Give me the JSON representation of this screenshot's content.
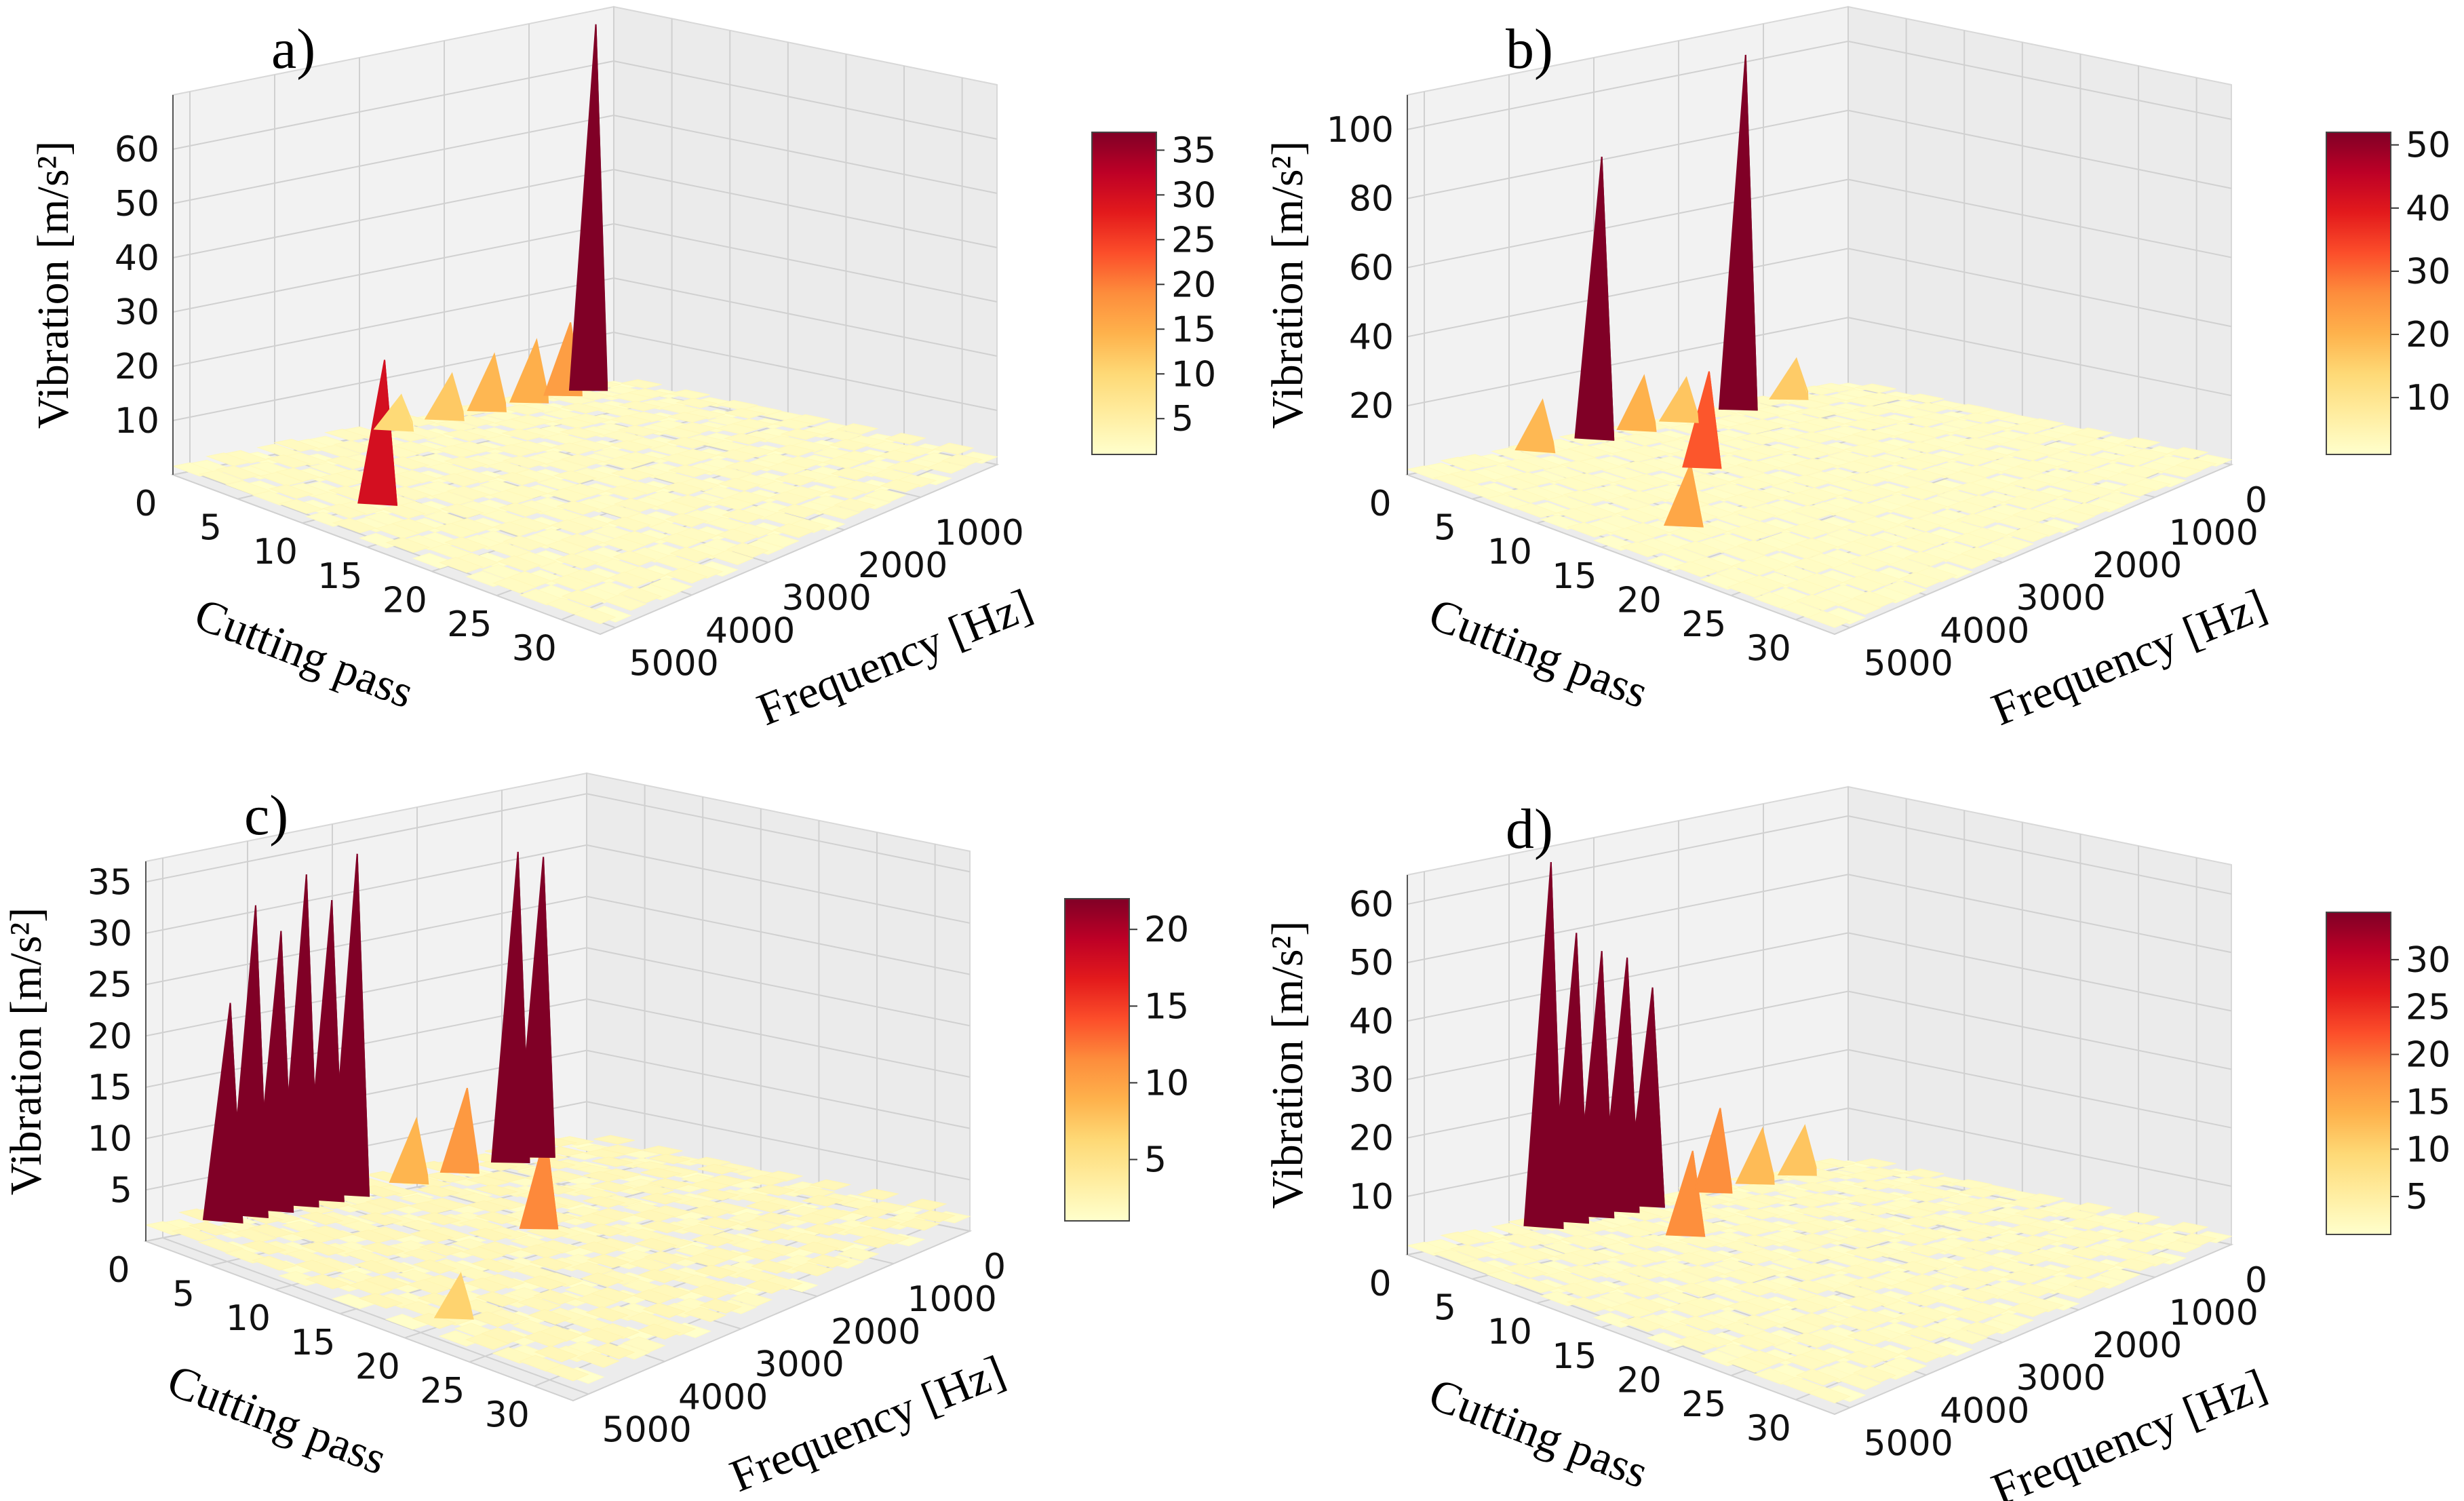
{
  "figure": {
    "panels": [
      {
        "label": "a)"
      },
      {
        "label": "b)"
      },
      {
        "label": "c)"
      },
      {
        "label": "d)"
      }
    ]
  },
  "colormap": {
    "name": "YlOrRd",
    "stops": [
      "#ffffcc",
      "#ffeda0",
      "#fed976",
      "#feb24c",
      "#fd8d3c",
      "#fc4e2a",
      "#e31a1c",
      "#bd0026",
      "#800026"
    ]
  },
  "chart_data": [
    {
      "type": "surface3d",
      "title": "a)",
      "xlabel": "Cutting pass",
      "ylabel": "Frequency [Hz]",
      "zlabel": "Vibration [m/s²]",
      "x_ticks": [
        0,
        5,
        10,
        15,
        20,
        25,
        30
      ],
      "y_ticks": [
        1000,
        2000,
        3000,
        4000,
        5000
      ],
      "z_ticks": [
        10,
        20,
        30,
        40,
        50,
        60
      ],
      "zlim": [
        0,
        70
      ],
      "colorbar_ticks": [
        5,
        10,
        15,
        20,
        25,
        30,
        35
      ],
      "colorbar_range": [
        1,
        37
      ],
      "peaks": [
        {
          "pass": 0,
          "freq": 300,
          "value": 68
        },
        {
          "pass": 0,
          "freq": 600,
          "value": 14
        },
        {
          "pass": 0,
          "freq": 1000,
          "value": 12
        },
        {
          "pass": 0,
          "freq": 1500,
          "value": 11
        },
        {
          "pass": 0,
          "freq": 2000,
          "value": 9
        },
        {
          "pass": 0,
          "freq": 2600,
          "value": 7
        },
        {
          "pass": 10,
          "freq": 4300,
          "value": 27
        }
      ]
    },
    {
      "type": "surface3d",
      "title": "b)",
      "xlabel": "Cutting pass",
      "ylabel": "Frequency [Hz]",
      "zlabel": "Vibration [m/s²]",
      "x_ticks": [
        0,
        5,
        10,
        15,
        20,
        25,
        30
      ],
      "y_ticks": [
        0,
        1000,
        2000,
        3000,
        4000,
        5000
      ],
      "z_ticks": [
        20,
        40,
        60,
        80,
        100
      ],
      "zlim": [
        0,
        110
      ],
      "colorbar_ticks": [
        10,
        20,
        30,
        40,
        50
      ],
      "colorbar_range": [
        1,
        52
      ],
      "peaks": [
        {
          "pass": 0,
          "freq": 1300,
          "value": 103
        },
        {
          "pass": 0,
          "freq": 3000,
          "value": 82
        },
        {
          "pass": 0,
          "freq": 2500,
          "value": 16
        },
        {
          "pass": 0,
          "freq": 2000,
          "value": 13
        },
        {
          "pass": 0,
          "freq": 700,
          "value": 12
        },
        {
          "pass": 0,
          "freq": 3700,
          "value": 15
        },
        {
          "pass": 8,
          "freq": 2900,
          "value": 28
        },
        {
          "pass": 15,
          "freq": 4200,
          "value": 18
        }
      ]
    },
    {
      "type": "surface3d",
      "title": "c)",
      "xlabel": "Cutting pass",
      "ylabel": "Frequency [Hz]",
      "zlabel": "Vibration [m/s²]",
      "x_ticks": [
        0,
        5,
        10,
        15,
        20,
        25,
        30
      ],
      "y_ticks": [
        0,
        1000,
        2000,
        3000,
        4000,
        5000
      ],
      "z_ticks": [
        5,
        10,
        15,
        20,
        25,
        30,
        35
      ],
      "zlim": [
        0,
        37
      ],
      "colorbar_ticks": [
        5,
        10,
        15,
        20
      ],
      "colorbar_range": [
        1,
        22
      ],
      "peaks": [
        {
          "pass": 0,
          "freq": 2800,
          "value": 34
        },
        {
          "pass": 0,
          "freq": 3100,
          "value": 30
        },
        {
          "pass": 0,
          "freq": 3400,
          "value": 33
        },
        {
          "pass": 0,
          "freq": 3700,
          "value": 28
        },
        {
          "pass": 0,
          "freq": 4000,
          "value": 31
        },
        {
          "pass": 0,
          "freq": 4300,
          "value": 22
        },
        {
          "pass": 0,
          "freq": 600,
          "value": 30
        },
        {
          "pass": 0,
          "freq": 900,
          "value": 31
        },
        {
          "pass": 0,
          "freq": 1500,
          "value": 9
        },
        {
          "pass": 0,
          "freq": 2100,
          "value": 7
        },
        {
          "pass": 12,
          "freq": 2300,
          "value": 10
        },
        {
          "pass": 20,
          "freq": 4600,
          "value": 5
        }
      ]
    },
    {
      "type": "surface3d",
      "title": "d)",
      "xlabel": "Cutting pass",
      "ylabel": "Frequency [Hz]",
      "zlabel": "Vibration [m/s²]",
      "x_ticks": [
        0,
        5,
        10,
        15,
        20,
        25,
        30
      ],
      "y_ticks": [
        0,
        1000,
        2000,
        3000,
        4000,
        5000
      ],
      "z_ticks": [
        10,
        20,
        30,
        40,
        50,
        60
      ],
      "zlim": [
        0,
        65
      ],
      "colorbar_ticks": [
        5,
        10,
        15,
        20,
        25,
        30
      ],
      "colorbar_range": [
        1,
        35
      ],
      "peaks": [
        {
          "pass": 0,
          "freq": 3600,
          "value": 63
        },
        {
          "pass": 0,
          "freq": 3300,
          "value": 50
        },
        {
          "pass": 0,
          "freq": 3000,
          "value": 46
        },
        {
          "pass": 0,
          "freq": 2700,
          "value": 44
        },
        {
          "pass": 0,
          "freq": 2400,
          "value": 38
        },
        {
          "pass": 0,
          "freq": 1600,
          "value": 15
        },
        {
          "pass": 0,
          "freq": 1100,
          "value": 10
        },
        {
          "pass": 0,
          "freq": 600,
          "value": 9
        },
        {
          "pass": 6,
          "freq": 2800,
          "value": 15
        }
      ]
    }
  ]
}
